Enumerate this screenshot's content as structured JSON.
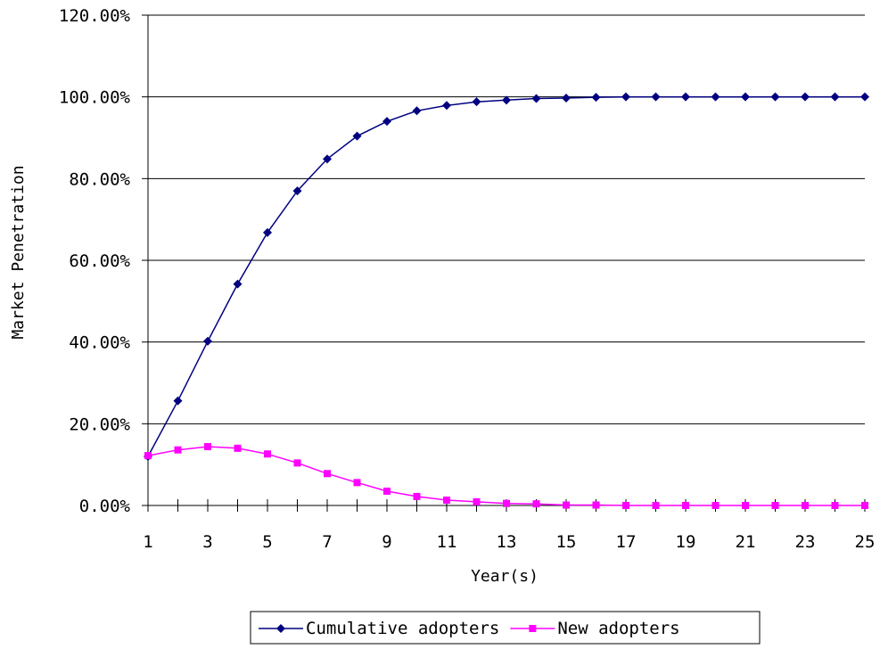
{
  "chart_data": {
    "type": "line",
    "title": "",
    "xlabel": "Year(s)",
    "ylabel": "Market Penetration",
    "ylim": [
      0,
      120
    ],
    "y_tick_values": [
      0,
      20,
      40,
      60,
      80,
      100,
      120
    ],
    "y_tick_labels": [
      "0.00%",
      "20.00%",
      "40.00%",
      "60.00%",
      "80.00%",
      "100.00%",
      "120.00%"
    ],
    "x": [
      1,
      2,
      3,
      4,
      5,
      6,
      7,
      8,
      9,
      10,
      11,
      12,
      13,
      14,
      15,
      16,
      17,
      18,
      19,
      20,
      21,
      22,
      23,
      24,
      25
    ],
    "x_tick_labels": [
      "1",
      "3",
      "5",
      "7",
      "9",
      "11",
      "13",
      "15",
      "17",
      "19",
      "21",
      "23",
      "25"
    ],
    "grid": "horizontal",
    "legend_position": "bottom",
    "series": [
      {
        "name": "Cumulative adopters",
        "color": "#000080",
        "marker": "diamond",
        "values": [
          12.0,
          25.6,
          40.2,
          54.2,
          66.8,
          77.0,
          84.8,
          90.4,
          94.0,
          96.6,
          97.9,
          98.8,
          99.2,
          99.6,
          99.7,
          99.9,
          100,
          100,
          100,
          100,
          100,
          100,
          100,
          100,
          100
        ]
      },
      {
        "name": "New adopters",
        "color": "#ff00ff",
        "marker": "square",
        "values": [
          12.2,
          13.6,
          14.4,
          14.0,
          12.6,
          10.4,
          7.8,
          5.6,
          3.5,
          2.2,
          1.3,
          0.9,
          0.5,
          0.4,
          0.1,
          0.1,
          0,
          0,
          0,
          0,
          0,
          0,
          0,
          0,
          0
        ]
      }
    ]
  }
}
